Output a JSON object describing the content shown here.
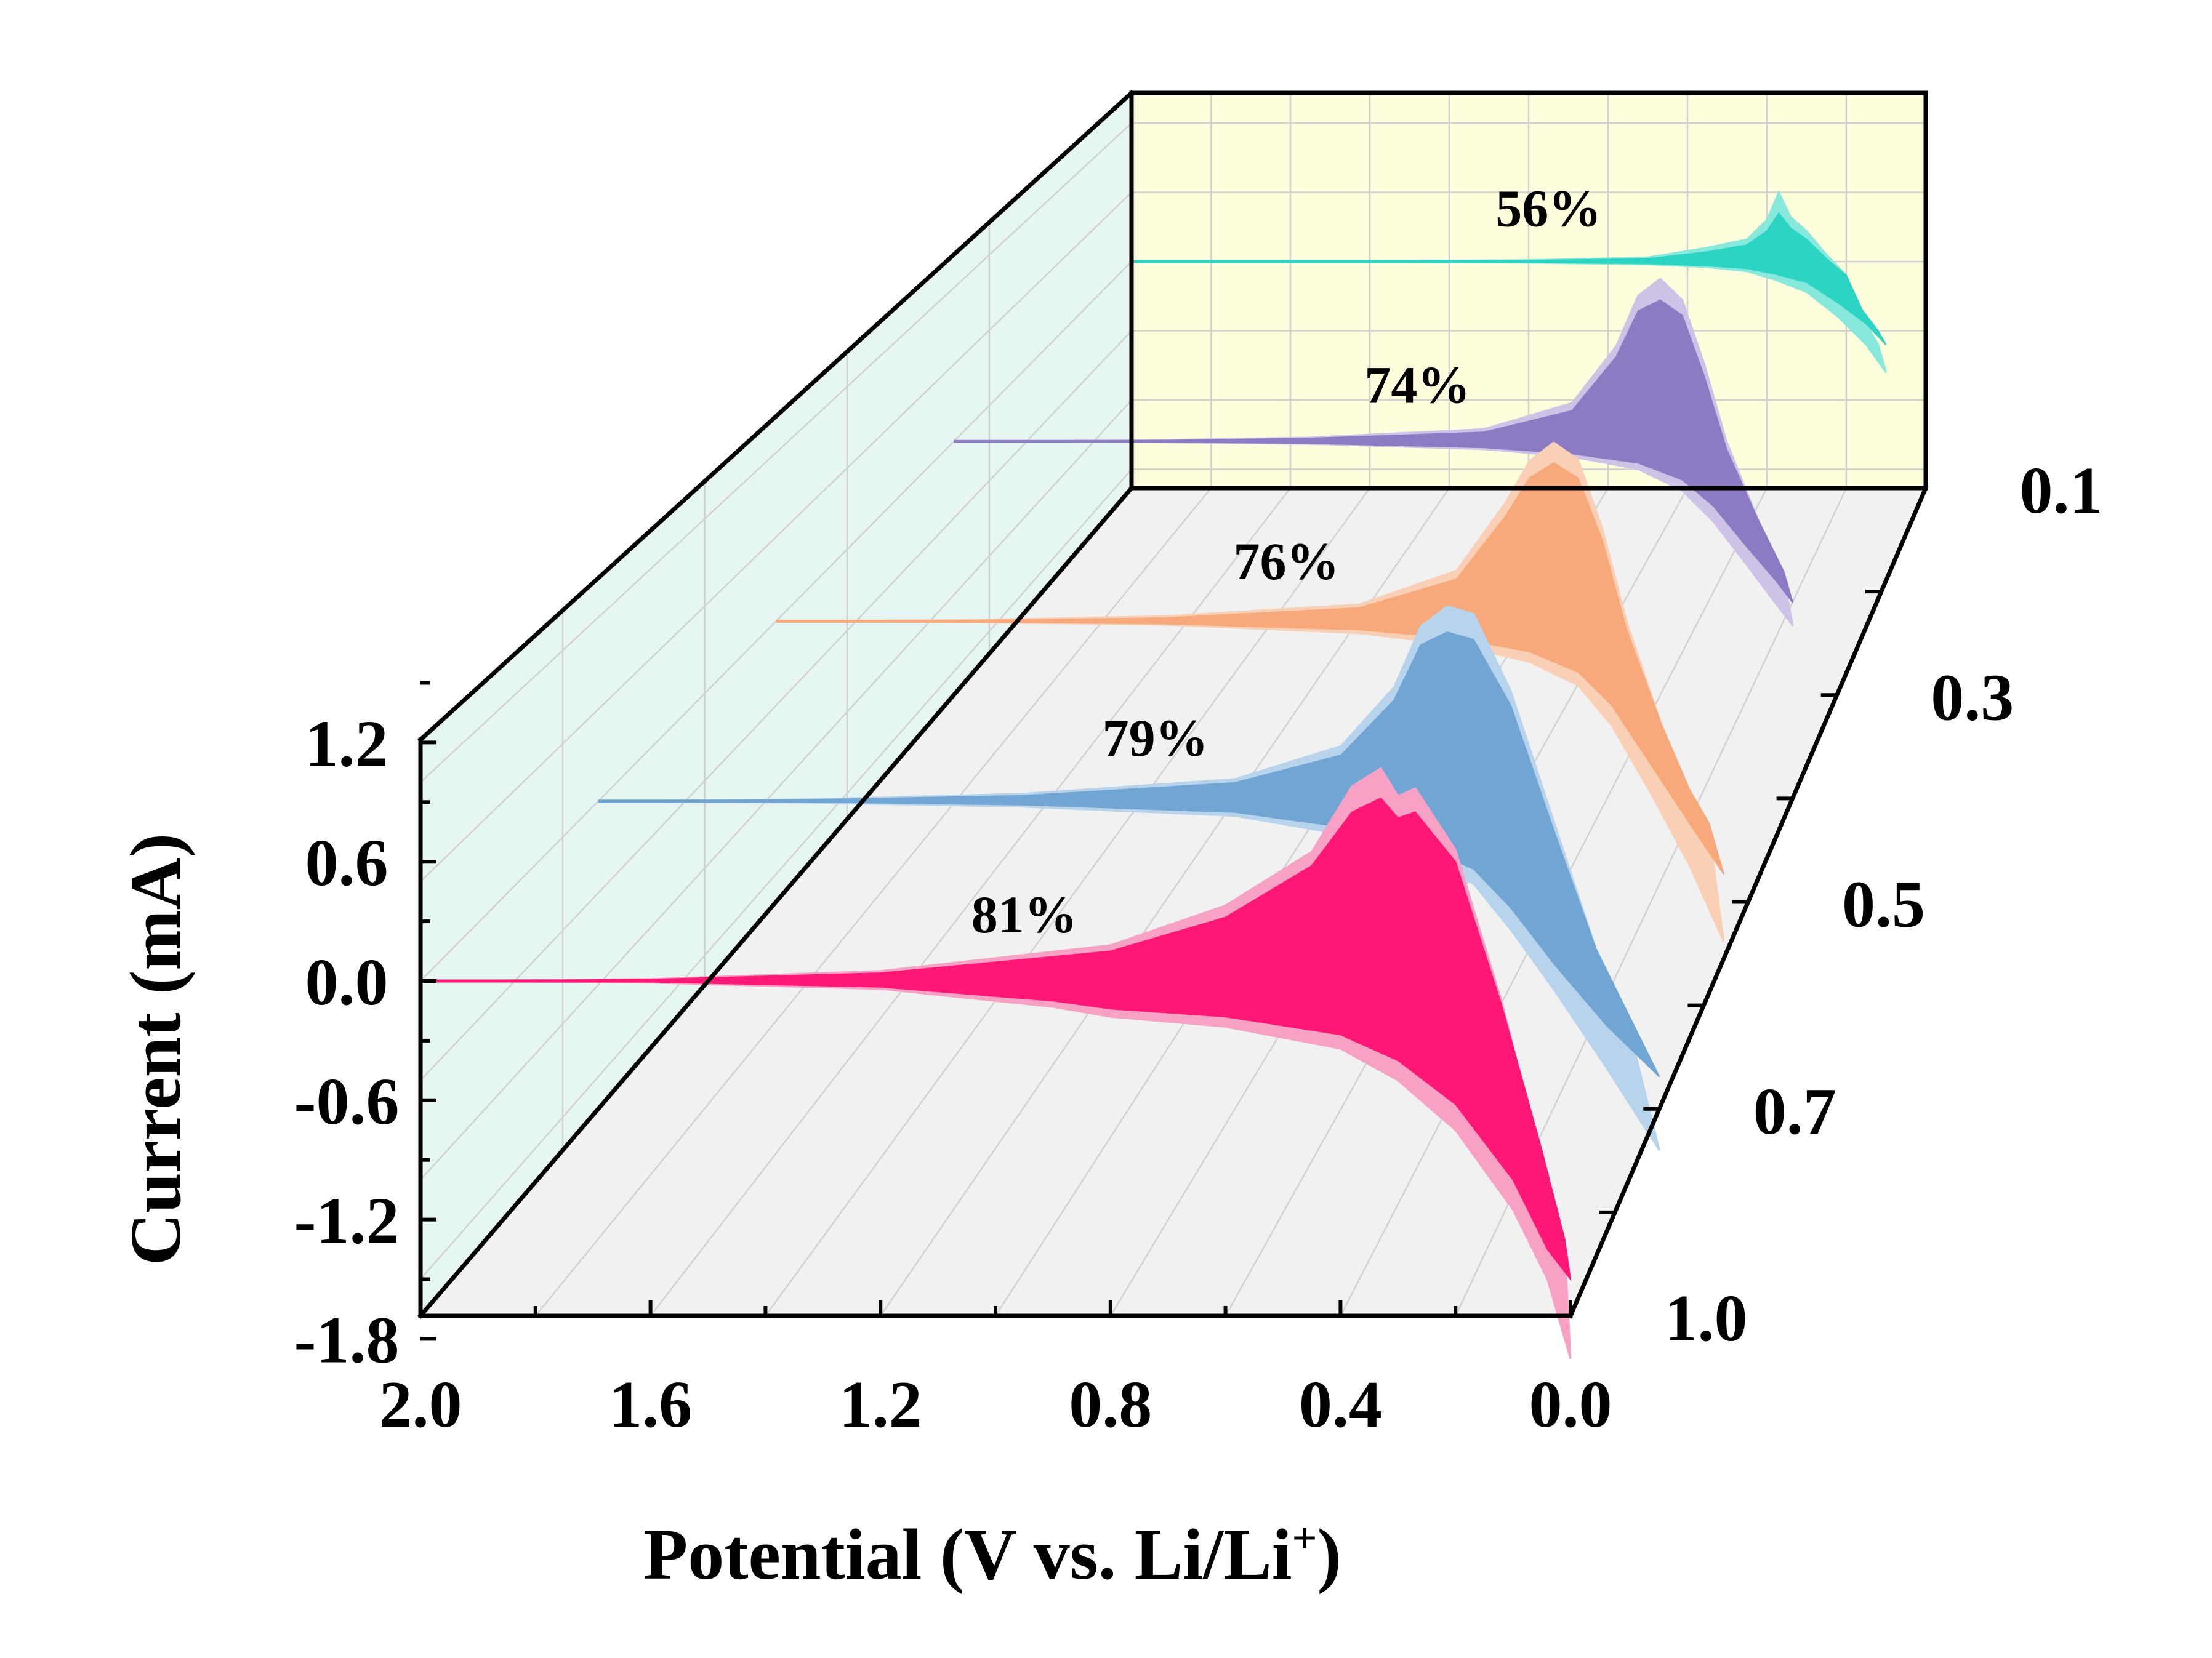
{
  "chart_data": {
    "type": "3d-waterfall-area",
    "xlabel": "Potential (V vs. Li/Li",
    "xlabel_sup": "+",
    "xlabel_close": ")",
    "ylabel": "Current (mA)",
    "x_ticks": [
      "2.0",
      "1.6",
      "1.2",
      "0.8",
      "0.4",
      "0.0"
    ],
    "x_tick_values": [
      2.0,
      1.6,
      1.2,
      0.8,
      0.4,
      0.0
    ],
    "y_ticks": [
      "1.2",
      "0.6",
      "0.0",
      "-0.6",
      "-1.2",
      "-1.8"
    ],
    "y_tick_values": [
      1.2,
      0.6,
      0.0,
      -0.6,
      -1.2,
      -1.8
    ],
    "z_ticks": [
      "0.1",
      "0.3",
      "0.5",
      "0.7",
      "1.0"
    ],
    "xlim": [
      2.0,
      0.0
    ],
    "ylim": [
      -1.8,
      1.5
    ],
    "series": [
      {
        "name": "1.0",
        "label": "81%",
        "depth": 0,
        "color_light": "#F7A1C4",
        "color_dark": "#FF1776",
        "upper_light": [
          [
            2.0,
            0.0
          ],
          [
            1.6,
            0.01
          ],
          [
            1.2,
            0.05
          ],
          [
            0.8,
            0.18
          ],
          [
            0.6,
            0.38
          ],
          [
            0.45,
            0.65
          ],
          [
            0.38,
            0.98
          ],
          [
            0.33,
            1.07
          ],
          [
            0.3,
            0.93
          ],
          [
            0.27,
            0.97
          ],
          [
            0.2,
            0.66
          ],
          [
            0.12,
            -0.1
          ],
          [
            0.05,
            -0.9
          ],
          [
            0.01,
            -1.35
          ],
          [
            0.0,
            -1.9
          ]
        ],
        "upper_dark": [
          [
            2.0,
            0.0
          ],
          [
            1.6,
            0.008
          ],
          [
            1.2,
            0.04
          ],
          [
            0.8,
            0.15
          ],
          [
            0.6,
            0.32
          ],
          [
            0.45,
            0.58
          ],
          [
            0.38,
            0.85
          ],
          [
            0.33,
            0.92
          ],
          [
            0.3,
            0.82
          ],
          [
            0.27,
            0.85
          ],
          [
            0.2,
            0.6
          ],
          [
            0.12,
            -0.12
          ],
          [
            0.05,
            -0.85
          ],
          [
            0.01,
            -1.3
          ],
          [
            0.0,
            -1.5
          ]
        ],
        "lower_dark": [
          [
            2.0,
            0.0
          ],
          [
            1.6,
            -0.005
          ],
          [
            1.2,
            -0.03
          ],
          [
            0.9,
            -0.1
          ],
          [
            0.8,
            -0.14
          ],
          [
            0.6,
            -0.18
          ],
          [
            0.4,
            -0.27
          ],
          [
            0.3,
            -0.4
          ],
          [
            0.2,
            -0.62
          ],
          [
            0.1,
            -1.0
          ],
          [
            0.04,
            -1.35
          ],
          [
            0.0,
            -1.5
          ]
        ],
        "lower_light": [
          [
            2.0,
            0.0
          ],
          [
            1.6,
            -0.008
          ],
          [
            1.2,
            -0.04
          ],
          [
            0.9,
            -0.13
          ],
          [
            0.8,
            -0.18
          ],
          [
            0.6,
            -0.23
          ],
          [
            0.4,
            -0.34
          ],
          [
            0.3,
            -0.5
          ],
          [
            0.2,
            -0.75
          ],
          [
            0.1,
            -1.15
          ],
          [
            0.04,
            -1.5
          ],
          [
            0.0,
            -1.9
          ]
        ]
      },
      {
        "name": "0.7",
        "label": "79%",
        "depth": 1,
        "color_light": "#B8D3EC",
        "color_dark": "#71A5D4",
        "upper_light": [
          [
            2.0,
            0.0
          ],
          [
            1.6,
            0.01
          ],
          [
            1.2,
            0.04
          ],
          [
            0.8,
            0.12
          ],
          [
            0.6,
            0.3
          ],
          [
            0.5,
            0.62
          ],
          [
            0.45,
            0.95
          ],
          [
            0.4,
            1.06
          ],
          [
            0.35,
            1.02
          ],
          [
            0.28,
            0.6
          ],
          [
            0.2,
            -0.1
          ],
          [
            0.12,
            -0.8
          ],
          [
            0.06,
            -1.2
          ],
          [
            0.0,
            -1.9
          ]
        ],
        "upper_dark": [
          [
            2.0,
            0.0
          ],
          [
            1.6,
            0.008
          ],
          [
            1.2,
            0.03
          ],
          [
            0.8,
            0.1
          ],
          [
            0.6,
            0.25
          ],
          [
            0.5,
            0.55
          ],
          [
            0.45,
            0.85
          ],
          [
            0.4,
            0.92
          ],
          [
            0.35,
            0.88
          ],
          [
            0.28,
            0.52
          ],
          [
            0.2,
            -0.15
          ],
          [
            0.12,
            -0.8
          ],
          [
            0.06,
            -1.15
          ],
          [
            0.0,
            -1.5
          ]
        ],
        "lower_dark": [
          [
            2.0,
            0.0
          ],
          [
            1.6,
            -0.005
          ],
          [
            1.2,
            -0.02
          ],
          [
            0.8,
            -0.06
          ],
          [
            0.6,
            -0.14
          ],
          [
            0.45,
            -0.24
          ],
          [
            0.35,
            -0.37
          ],
          [
            0.28,
            -0.58
          ],
          [
            0.2,
            -0.88
          ],
          [
            0.1,
            -1.22
          ],
          [
            0.0,
            -1.5
          ]
        ],
        "lower_light": [
          [
            2.0,
            0.0
          ],
          [
            1.6,
            -0.008
          ],
          [
            1.2,
            -0.03
          ],
          [
            0.8,
            -0.08
          ],
          [
            0.6,
            -0.18
          ],
          [
            0.45,
            -0.3
          ],
          [
            0.35,
            -0.45
          ],
          [
            0.28,
            -0.7
          ],
          [
            0.2,
            -1.02
          ],
          [
            0.1,
            -1.45
          ],
          [
            0.0,
            -1.9
          ]
        ]
      },
      {
        "name": "0.5",
        "label": "76%",
        "depth": 2,
        "color_light": "#F9D0B5",
        "color_dark": "#F7A97B",
        "upper_light": [
          [
            2.0,
            0.0
          ],
          [
            1.6,
            0.008
          ],
          [
            1.2,
            0.03
          ],
          [
            0.8,
            0.1
          ],
          [
            0.6,
            0.3
          ],
          [
            0.5,
            0.7
          ],
          [
            0.45,
            0.95
          ],
          [
            0.4,
            1.06
          ],
          [
            0.35,
            0.96
          ],
          [
            0.3,
            0.55
          ],
          [
            0.25,
            0.0
          ],
          [
            0.18,
            -0.6
          ],
          [
            0.12,
            -1.05
          ],
          [
            0.08,
            -1.25
          ],
          [
            0.05,
            -1.9
          ]
        ],
        "upper_dark": [
          [
            2.0,
            0.0
          ],
          [
            1.6,
            0.005
          ],
          [
            1.2,
            0.02
          ],
          [
            0.8,
            0.08
          ],
          [
            0.6,
            0.25
          ],
          [
            0.5,
            0.62
          ],
          [
            0.45,
            0.85
          ],
          [
            0.4,
            0.94
          ],
          [
            0.35,
            0.85
          ],
          [
            0.3,
            0.48
          ],
          [
            0.25,
            -0.05
          ],
          [
            0.18,
            -0.6
          ],
          [
            0.12,
            -1.0
          ],
          [
            0.08,
            -1.2
          ],
          [
            0.05,
            -1.5
          ]
        ],
        "lower_dark": [
          [
            2.0,
            0.0
          ],
          [
            1.6,
            -0.004
          ],
          [
            1.2,
            -0.015
          ],
          [
            0.8,
            -0.05
          ],
          [
            0.6,
            -0.1
          ],
          [
            0.45,
            -0.18
          ],
          [
            0.35,
            -0.3
          ],
          [
            0.28,
            -0.5
          ],
          [
            0.2,
            -0.85
          ],
          [
            0.12,
            -1.2
          ],
          [
            0.05,
            -1.5
          ]
        ],
        "lower_light": [
          [
            2.0,
            0.0
          ],
          [
            1.6,
            -0.006
          ],
          [
            1.2,
            -0.02
          ],
          [
            0.8,
            -0.07
          ],
          [
            0.6,
            -0.14
          ],
          [
            0.45,
            -0.24
          ],
          [
            0.35,
            -0.38
          ],
          [
            0.28,
            -0.62
          ],
          [
            0.2,
            -1.02
          ],
          [
            0.12,
            -1.45
          ],
          [
            0.05,
            -1.9
          ]
        ]
      },
      {
        "name": "0.3",
        "label": "74%",
        "depth": 3,
        "color_light": "#CEC3E6",
        "color_dark": "#8C7BC3",
        "upper_light": [
          [
            2.0,
            0.0
          ],
          [
            1.6,
            0.006
          ],
          [
            1.2,
            0.025
          ],
          [
            0.8,
            0.08
          ],
          [
            0.6,
            0.25
          ],
          [
            0.5,
            0.62
          ],
          [
            0.45,
            0.95
          ],
          [
            0.4,
            1.06
          ],
          [
            0.35,
            0.92
          ],
          [
            0.3,
            0.5
          ],
          [
            0.25,
            0.0
          ],
          [
            0.18,
            -0.5
          ],
          [
            0.12,
            -0.9
          ],
          [
            0.1,
            -1.2
          ]
        ],
        "upper_dark": [
          [
            2.0,
            0.0
          ],
          [
            1.6,
            0.004
          ],
          [
            1.2,
            0.02
          ],
          [
            0.8,
            0.06
          ],
          [
            0.6,
            0.2
          ],
          [
            0.5,
            0.55
          ],
          [
            0.45,
            0.85
          ],
          [
            0.4,
            0.92
          ],
          [
            0.35,
            0.82
          ],
          [
            0.3,
            0.42
          ],
          [
            0.25,
            -0.05
          ],
          [
            0.18,
            -0.5
          ],
          [
            0.12,
            -0.85
          ],
          [
            0.1,
            -1.05
          ]
        ],
        "lower_dark": [
          [
            2.0,
            0.0
          ],
          [
            1.6,
            -0.003
          ],
          [
            1.2,
            -0.012
          ],
          [
            0.8,
            -0.04
          ],
          [
            0.6,
            -0.08
          ],
          [
            0.45,
            -0.14
          ],
          [
            0.35,
            -0.25
          ],
          [
            0.28,
            -0.42
          ],
          [
            0.2,
            -0.7
          ],
          [
            0.14,
            -0.9
          ],
          [
            0.1,
            -1.05
          ]
        ],
        "lower_light": [
          [
            2.0,
            0.0
          ],
          [
            1.6,
            -0.004
          ],
          [
            1.2,
            -0.016
          ],
          [
            0.8,
            -0.05
          ],
          [
            0.6,
            -0.1
          ],
          [
            0.45,
            -0.18
          ],
          [
            0.35,
            -0.32
          ],
          [
            0.28,
            -0.52
          ],
          [
            0.2,
            -0.82
          ],
          [
            0.14,
            -1.05
          ],
          [
            0.1,
            -1.2
          ]
        ]
      },
      {
        "name": "0.1",
        "label": "56%",
        "depth": 4,
        "color_light": "#86E9DB",
        "color_dark": "#2CD4C4",
        "upper_light": [
          [
            2.0,
            0.0
          ],
          [
            1.4,
            0.003
          ],
          [
            1.0,
            0.01
          ],
          [
            0.7,
            0.03
          ],
          [
            0.55,
            0.1
          ],
          [
            0.45,
            0.16
          ],
          [
            0.4,
            0.3
          ],
          [
            0.37,
            0.5
          ],
          [
            0.34,
            0.32
          ],
          [
            0.3,
            0.22
          ],
          [
            0.25,
            0.05
          ],
          [
            0.2,
            -0.1
          ],
          [
            0.16,
            -0.4
          ],
          [
            0.12,
            -0.6
          ],
          [
            0.1,
            -0.8
          ]
        ],
        "upper_dark": [
          [
            2.0,
            0.0
          ],
          [
            1.4,
            0.002
          ],
          [
            1.0,
            0.008
          ],
          [
            0.7,
            0.02
          ],
          [
            0.55,
            0.07
          ],
          [
            0.45,
            0.12
          ],
          [
            0.4,
            0.22
          ],
          [
            0.37,
            0.35
          ],
          [
            0.34,
            0.24
          ],
          [
            0.3,
            0.16
          ],
          [
            0.25,
            0.02
          ],
          [
            0.2,
            -0.1
          ],
          [
            0.16,
            -0.35
          ],
          [
            0.12,
            -0.5
          ],
          [
            0.1,
            -0.6
          ]
        ],
        "lower_dark": [
          [
            2.0,
            0.0
          ],
          [
            1.4,
            -0.002
          ],
          [
            1.0,
            -0.006
          ],
          [
            0.7,
            -0.015
          ],
          [
            0.55,
            -0.03
          ],
          [
            0.45,
            -0.05
          ],
          [
            0.38,
            -0.09
          ],
          [
            0.3,
            -0.15
          ],
          [
            0.22,
            -0.3
          ],
          [
            0.15,
            -0.45
          ],
          [
            0.1,
            -0.6
          ]
        ],
        "lower_light": [
          [
            2.0,
            0.0
          ],
          [
            1.4,
            -0.003
          ],
          [
            1.0,
            -0.008
          ],
          [
            0.7,
            -0.02
          ],
          [
            0.55,
            -0.04
          ],
          [
            0.45,
            -0.07
          ],
          [
            0.38,
            -0.13
          ],
          [
            0.3,
            -0.22
          ],
          [
            0.22,
            -0.4
          ],
          [
            0.15,
            -0.6
          ],
          [
            0.1,
            -0.8
          ]
        ]
      }
    ],
    "colors": {
      "back_wall": "#FFFEDC",
      "side_wall": "#E6F6F3",
      "floor": "#F1F1F1",
      "grid": "#D2D2D2",
      "axis": "#000000"
    }
  }
}
